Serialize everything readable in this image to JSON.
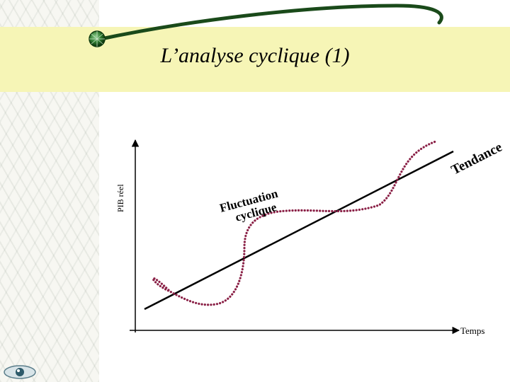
{
  "slide": {
    "title": "L’analyse cyclique (1)"
  },
  "diagram": {
    "y_axis_label": "PIB réel",
    "x_axis_label": "Temps",
    "trend_label": "Tendance",
    "cycle_label_line1": "Fluctuation",
    "cycle_label_line2": "cyclique"
  },
  "colors": {
    "title_band": "#f6f5b6",
    "curve_dots": "#8a2046",
    "trend_line": "#000000",
    "header_swoosh": "#1a4a1a"
  },
  "icons": {
    "orb": "green-orb-icon",
    "eye": "eye-logo-icon"
  }
}
